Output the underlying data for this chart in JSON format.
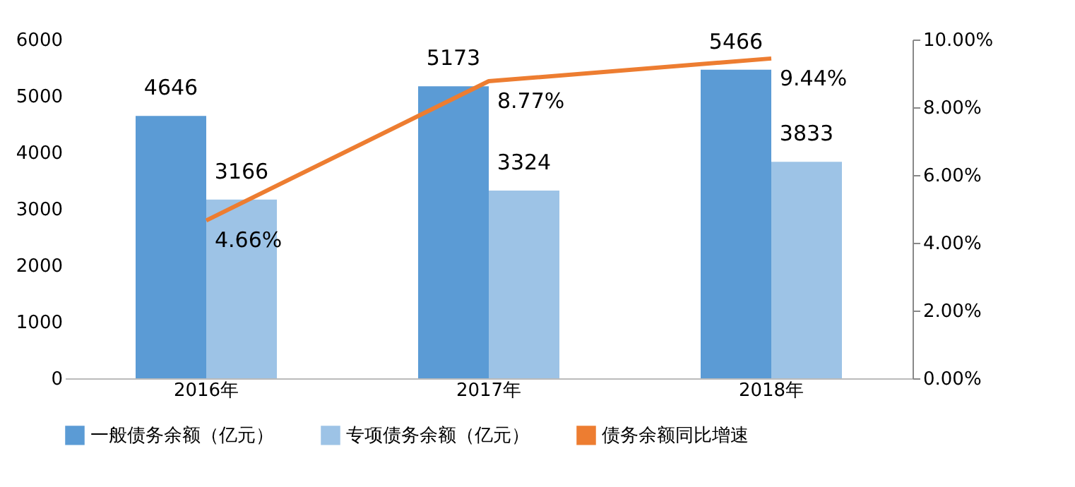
{
  "chart_data": {
    "type": "bar",
    "categories": [
      "2016年",
      "2017年",
      "2018年"
    ],
    "series": [
      {
        "name": "一般债务余额（亿元）",
        "color": "#5b9bd5",
        "values": [
          4646,
          5173,
          5466
        ]
      },
      {
        "name": "专项债务余额（亿元）",
        "color": "#9dc3e6",
        "values": [
          3166,
          3324,
          3833
        ]
      },
      {
        "name": "债务余额同比增速",
        "type": "line",
        "axis": "y2",
        "color": "#ed7d31",
        "values": [
          4.66,
          8.77,
          9.44
        ],
        "value_labels": [
          "4.66%",
          "8.77%",
          "9.44%"
        ]
      }
    ],
    "ylim": [
      0,
      6000
    ],
    "yticks": [
      0,
      1000,
      2000,
      3000,
      4000,
      5000,
      6000
    ],
    "y2lim": [
      0,
      10
    ],
    "y2ticks": [
      {
        "value": 0,
        "label": "0.00%"
      },
      {
        "value": 2,
        "label": "2.00%"
      },
      {
        "value": 4,
        "label": "4.00%"
      },
      {
        "value": 6,
        "label": "6.00%"
      },
      {
        "value": 8,
        "label": "8.00%"
      },
      {
        "value": 10,
        "label": "10.00%"
      }
    ],
    "data_labels": true,
    "legend": "bottom"
  }
}
